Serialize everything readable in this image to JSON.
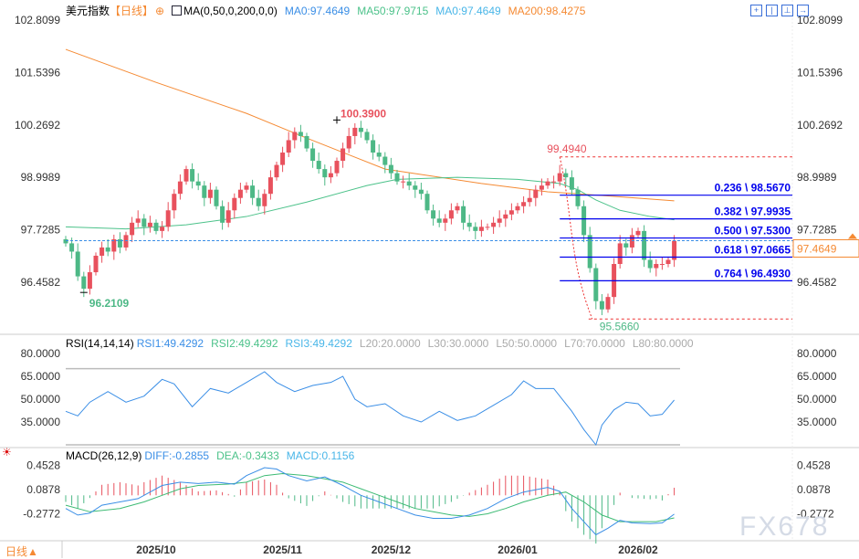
{
  "header": {
    "title": "美元指数",
    "period": "【日线】",
    "indicator": "MA(0,50,0,200,0,0)",
    "ma0": "MA0:97.4649",
    "ma50": "MA50:97.9715",
    "ma0b": "MA0:97.4649",
    "ma200": "MA200:98.4275"
  },
  "rsi_header": {
    "name": "RSI(14,14,14)",
    "rsi1": "RSI1:49.4292",
    "rsi2": "RSI2:49.4292",
    "rsi3": "RSI3:49.4292",
    "l20": "L20:20.0000",
    "l30": "L30:30.0000",
    "l50": "L50:50.0000",
    "l70": "L70:70.0000",
    "l80": "L80:80.0000"
  },
  "macd_header": {
    "name": "MACD(26,12,9)",
    "diff": "DIFF:-0.2855",
    "dea": "DEA:-0.3433",
    "macd": "MACD:0.1156"
  },
  "period_selector": "日线▲",
  "watermark": "FX678",
  "colors": {
    "up": "#e8515d",
    "down": "#4db886",
    "ma50": "#4cc28a",
    "ma200": "#f58a33",
    "diff": "#3a8ee6",
    "dea": "#3dbb74",
    "fib": "#0000ee",
    "current": "#f58a33"
  },
  "price_axis": [
    "102.8099",
    "101.5396",
    "100.2692",
    "98.9989",
    "97.7285",
    "96.4582"
  ],
  "rsi_axis": [
    "80.0000",
    "65.0000",
    "50.0000",
    "35.0000"
  ],
  "macd_axis": [
    "0.4528",
    "0.0878",
    "-0.2772"
  ],
  "current_price": "97.4649",
  "annotations": {
    "high": "100.3900",
    "low": "96.2109",
    "swing_high": "99.4940",
    "swing_low": "95.5660"
  },
  "fib_levels": [
    {
      "label": "0.236 \\ 98.5670",
      "value": 98.567
    },
    {
      "label": "0.382 \\ 97.9935",
      "value": 97.9935
    },
    {
      "label": "0.500 \\ 97.5300",
      "value": 97.53
    },
    {
      "label": "0.618 \\ 97.0665",
      "value": 97.0665
    },
    {
      "label": "0.764 \\ 96.4930",
      "value": 96.493
    }
  ],
  "chart_data": {
    "type": "candlestick",
    "x_ticks": [
      {
        "label": "2025/10",
        "bar": 15
      },
      {
        "label": "2025/11",
        "bar": 36
      },
      {
        "label": "2025/12",
        "bar": 54
      },
      {
        "label": "2026/01",
        "bar": 75
      },
      {
        "label": "2026/02",
        "bar": 95
      }
    ],
    "ylim": [
      95.3,
      102.9
    ],
    "closes": [
      97.4,
      97.2,
      96.6,
      96.3,
      96.7,
      97.1,
      97.3,
      97.2,
      97.5,
      97.3,
      97.6,
      97.9,
      98.0,
      97.8,
      97.9,
      97.7,
      97.8,
      98.2,
      98.6,
      98.9,
      99.2,
      98.9,
      98.8,
      98.5,
      98.7,
      98.3,
      97.9,
      98.2,
      98.5,
      98.7,
      98.8,
      98.5,
      98.3,
      98.6,
      99.0,
      99.3,
      99.6,
      99.9,
      100.1,
      100.0,
      99.7,
      99.4,
      99.2,
      99.0,
      99.1,
      99.4,
      99.7,
      100.0,
      100.2,
      100.1,
      99.9,
      99.6,
      99.5,
      99.3,
      99.1,
      98.9,
      98.9,
      98.8,
      98.7,
      98.6,
      98.2,
      98.0,
      97.9,
      98.0,
      98.2,
      98.3,
      97.9,
      97.8,
      97.7,
      97.8,
      97.8,
      97.9,
      98.0,
      98.1,
      98.2,
      98.3,
      98.4,
      98.5,
      98.7,
      98.8,
      98.9,
      98.9,
      99.1,
      99.0,
      98.7,
      98.3,
      97.6,
      96.8,
      96.0,
      95.8,
      96.1,
      96.9,
      97.4,
      97.3,
      97.6,
      97.7,
      97.0,
      96.8,
      96.9,
      96.9,
      97.0,
      97.46
    ],
    "ma50": [
      [
        0,
        97.8
      ],
      [
        10,
        97.75
      ],
      [
        20,
        97.85
      ],
      [
        30,
        98.05
      ],
      [
        40,
        98.4
      ],
      [
        50,
        98.8
      ],
      [
        55,
        98.95
      ],
      [
        65,
        99.0
      ],
      [
        75,
        98.95
      ],
      [
        82,
        98.85
      ],
      [
        85,
        98.7
      ],
      [
        88,
        98.45
      ],
      [
        92,
        98.2
      ],
      [
        97,
        98.05
      ],
      [
        101,
        97.97
      ]
    ],
    "ma200": [
      [
        0,
        102.1
      ],
      [
        15,
        101.3
      ],
      [
        30,
        100.55
      ],
      [
        40,
        99.95
      ],
      [
        53,
        99.2
      ],
      [
        69,
        98.85
      ],
      [
        80,
        98.65
      ],
      [
        90,
        98.55
      ],
      [
        101,
        98.43
      ]
    ],
    "rsi": {
      "ylim": [
        20,
        80
      ],
      "values": [
        [
          0,
          42
        ],
        [
          2,
          39
        ],
        [
          4,
          48
        ],
        [
          7,
          55
        ],
        [
          10,
          48
        ],
        [
          13,
          52
        ],
        [
          16,
          63
        ],
        [
          18,
          60
        ],
        [
          21,
          45
        ],
        [
          24,
          57
        ],
        [
          27,
          54
        ],
        [
          30,
          61
        ],
        [
          33,
          68
        ],
        [
          35,
          61
        ],
        [
          38,
          55
        ],
        [
          41,
          59
        ],
        [
          44,
          61
        ],
        [
          46,
          65
        ],
        [
          48,
          50
        ],
        [
          50,
          45
        ],
        [
          53,
          47
        ],
        [
          56,
          39
        ],
        [
          59,
          35
        ],
        [
          62,
          42
        ],
        [
          65,
          36
        ],
        [
          68,
          39
        ],
        [
          71,
          46
        ],
        [
          74,
          53
        ],
        [
          76,
          62
        ],
        [
          78,
          57
        ],
        [
          81,
          57
        ],
        [
          84,
          42
        ],
        [
          86,
          30
        ],
        [
          88,
          20
        ],
        [
          89,
          33
        ],
        [
          91,
          43
        ],
        [
          93,
          48
        ],
        [
          95,
          47
        ],
        [
          97,
          39
        ],
        [
          99,
          40
        ],
        [
          101,
          49.4
        ]
      ]
    },
    "macd": {
      "diff": [
        [
          0,
          -0.2
        ],
        [
          2,
          -0.3
        ],
        [
          4,
          -0.27
        ],
        [
          6,
          -0.15
        ],
        [
          9,
          -0.1
        ],
        [
          12,
          -0.05
        ],
        [
          14,
          0.05
        ],
        [
          16,
          0.15
        ],
        [
          19,
          0.2
        ],
        [
          22,
          0.18
        ],
        [
          25,
          0.2
        ],
        [
          28,
          0.17
        ],
        [
          30,
          0.3
        ],
        [
          33,
          0.42
        ],
        [
          35,
          0.4
        ],
        [
          37,
          0.3
        ],
        [
          40,
          0.22
        ],
        [
          43,
          0.28
        ],
        [
          46,
          0.15
        ],
        [
          49,
          0.0
        ],
        [
          52,
          -0.1
        ],
        [
          55,
          -0.2
        ],
        [
          58,
          -0.3
        ],
        [
          61,
          -0.35
        ],
        [
          64,
          -0.35
        ],
        [
          67,
          -0.3
        ],
        [
          70,
          -0.2
        ],
        [
          73,
          -0.05
        ],
        [
          76,
          0.05
        ],
        [
          80,
          0.12
        ],
        [
          82,
          0.06
        ],
        [
          84,
          -0.2
        ],
        [
          87,
          -0.5
        ],
        [
          88,
          -0.6
        ],
        [
          90,
          -0.5
        ],
        [
          92,
          -0.38
        ],
        [
          94,
          -0.42
        ],
        [
          97,
          -0.43
        ],
        [
          99,
          -0.42
        ],
        [
          101,
          -0.2855
        ]
      ],
      "dea": [
        [
          0,
          -0.15
        ],
        [
          4,
          -0.25
        ],
        [
          9,
          -0.2
        ],
        [
          13,
          -0.1
        ],
        [
          16,
          0.0
        ],
        [
          19,
          0.1
        ],
        [
          22,
          0.15
        ],
        [
          27,
          0.17
        ],
        [
          30,
          0.2
        ],
        [
          33,
          0.3
        ],
        [
          36,
          0.33
        ],
        [
          40,
          0.3
        ],
        [
          43,
          0.25
        ],
        [
          46,
          0.2
        ],
        [
          49,
          0.1
        ],
        [
          52,
          0.0
        ],
        [
          55,
          -0.1
        ],
        [
          58,
          -0.2
        ],
        [
          61,
          -0.25
        ],
        [
          64,
          -0.3
        ],
        [
          67,
          -0.32
        ],
        [
          70,
          -0.28
        ],
        [
          73,
          -0.2
        ],
        [
          76,
          -0.1
        ],
        [
          80,
          0.0
        ],
        [
          83,
          0.05
        ],
        [
          86,
          -0.1
        ],
        [
          89,
          -0.3
        ],
        [
          92,
          -0.4
        ],
        [
          95,
          -0.4
        ],
        [
          98,
          -0.4
        ],
        [
          101,
          -0.3433
        ]
      ]
    }
  }
}
